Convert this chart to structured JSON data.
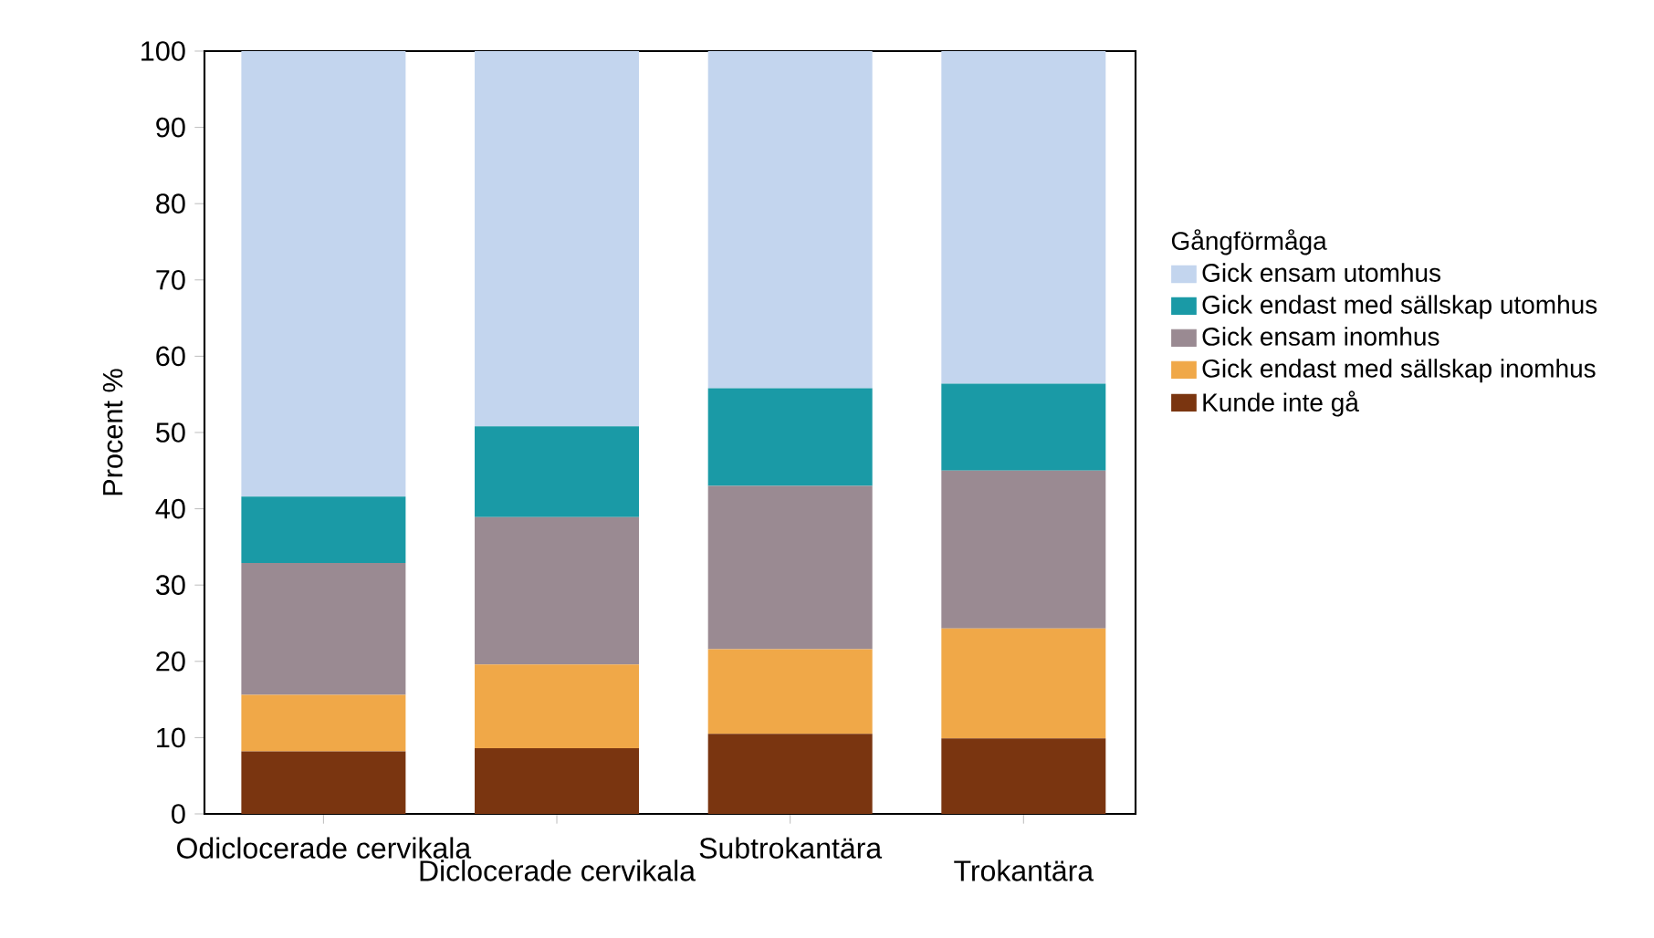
{
  "chart_data": {
    "type": "bar",
    "stacked": true,
    "ylabel": "Procent %",
    "legend_title": "Gångförmåga",
    "legend": "right",
    "categories": [
      "Odiclocerade cervikala",
      "Diclocerade cervikala",
      "Subtrokantära",
      "Trokantära"
    ],
    "ylim": [
      0,
      100
    ],
    "yticks": [
      0,
      10,
      20,
      30,
      40,
      50,
      60,
      70,
      80,
      90,
      100
    ],
    "series": [
      {
        "name": "Kunde inte gå",
        "color": "#7a3510",
        "values": [
          8.2,
          8.6,
          10.5,
          9.9
        ]
      },
      {
        "name": "Gick endast med sällskap inomhus",
        "color": "#f0a848",
        "values": [
          7.4,
          11.0,
          11.1,
          14.4
        ]
      },
      {
        "name": "Gick ensam inomhus",
        "color": "#9a8a92",
        "values": [
          17.3,
          19.3,
          21.4,
          20.7
        ]
      },
      {
        "name": "Gick endast med sällskap utomhus",
        "color": "#1a9aa6",
        "values": [
          8.7,
          11.9,
          12.8,
          11.4
        ]
      },
      {
        "name": "Gick ensam utomhus",
        "color": "#c3d5ee",
        "values": [
          58.4,
          49.2,
          44.2,
          43.6
        ]
      }
    ]
  }
}
